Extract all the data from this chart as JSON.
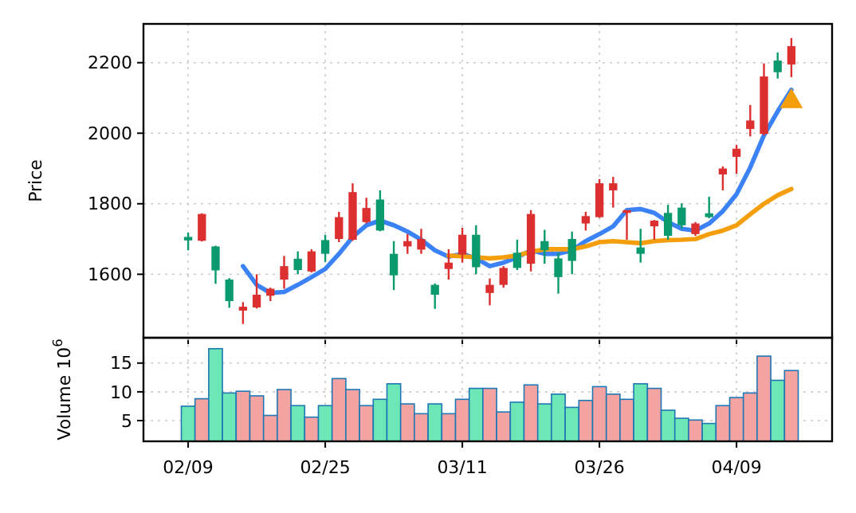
{
  "chart_data": [
    {
      "type": "candlestick",
      "ylabel": "Price",
      "ylim": [
        1420,
        2310
      ],
      "yticks": [
        1600,
        1800,
        2000,
        2200
      ],
      "grid": true,
      "tick_labels": "y",
      "categories": [
        null,
        null,
        null,
        null,
        null,
        null,
        null,
        null,
        null,
        null,
        null,
        null,
        null,
        null,
        null,
        null,
        null,
        null,
        null,
        null,
        null,
        null,
        null,
        null,
        null,
        null,
        null,
        null,
        null,
        null,
        null,
        null,
        null,
        null,
        null,
        null,
        null,
        null,
        null,
        null,
        null,
        null,
        null,
        null,
        null
      ],
      "ohlc": [
        [
          1706,
          1718,
          1668,
          1696
        ],
        [
          1695,
          1773,
          1693,
          1771
        ],
        [
          1679,
          1681,
          1573,
          1611
        ],
        [
          1585,
          1589,
          1505,
          1524
        ],
        [
          1497,
          1521,
          1459,
          1508
        ],
        [
          1506,
          1600,
          1503,
          1542
        ],
        [
          1539,
          1562,
          1524,
          1559
        ],
        [
          1585,
          1652,
          1559,
          1623
        ],
        [
          1644,
          1665,
          1600,
          1612
        ],
        [
          1608,
          1671,
          1605,
          1665
        ],
        [
          1697,
          1712,
          1635,
          1658
        ],
        [
          1700,
          1777,
          1691,
          1762
        ],
        [
          1698,
          1858,
          1695,
          1833
        ],
        [
          1748,
          1817,
          1744,
          1788
        ],
        [
          1812,
          1838,
          1722,
          1724
        ],
        [
          1658,
          1694,
          1555,
          1597
        ],
        [
          1679,
          1714,
          1658,
          1694
        ],
        [
          1670,
          1729,
          1658,
          1700
        ],
        [
          1570,
          1574,
          1502,
          1542
        ],
        [
          1615,
          1671,
          1585,
          1633
        ],
        [
          1656,
          1732,
          1633,
          1712
        ],
        [
          1712,
          1739,
          1600,
          1620
        ],
        [
          1547,
          1588,
          1512,
          1570
        ],
        [
          1570,
          1623,
          1562,
          1618
        ],
        [
          1661,
          1698,
          1612,
          1618
        ],
        [
          1630,
          1782,
          1608,
          1771
        ],
        [
          1694,
          1726,
          1630,
          1668
        ],
        [
          1645,
          1661,
          1545,
          1592
        ],
        [
          1700,
          1721,
          1600,
          1638
        ],
        [
          1744,
          1777,
          1724,
          1765
        ],
        [
          1762,
          1870,
          1760,
          1858
        ],
        [
          1838,
          1876,
          1789,
          1858
        ],
        [
          1774,
          1782,
          1698,
          1782
        ],
        [
          1676,
          1729,
          1633,
          1658
        ],
        [
          1736,
          1754,
          1698,
          1752
        ],
        [
          1774,
          1797,
          1698,
          1709
        ],
        [
          1789,
          1801,
          1729,
          1739
        ],
        [
          1714,
          1748,
          1709,
          1744
        ],
        [
          1773,
          1820,
          1759,
          1762
        ],
        [
          1883,
          1906,
          1838,
          1900
        ],
        [
          1933,
          1967,
          1885,
          1956
        ],
        [
          2012,
          2080,
          1991,
          2036
        ],
        [
          1998,
          2198,
          1994,
          2161
        ],
        [
          2206,
          2229,
          2155,
          2173
        ],
        [
          2195,
          2270,
          2159,
          2247
        ]
      ],
      "colors": [
        "#0b9a6d",
        "#dc2f2f",
        "#0b9a6d",
        "#0b9a6d",
        "#dc2f2f",
        "#dc2f2f",
        "#dc2f2f",
        "#dc2f2f",
        "#0b9a6d",
        "#dc2f2f",
        "#0b9a6d",
        "#dc2f2f",
        "#dc2f2f",
        "#dc2f2f",
        "#0b9a6d",
        "#0b9a6d",
        "#dc2f2f",
        "#dc2f2f",
        "#0b9a6d",
        "#dc2f2f",
        "#dc2f2f",
        "#0b9a6d",
        "#dc2f2f",
        "#dc2f2f",
        "#0b9a6d",
        "#dc2f2f",
        "#0b9a6d",
        "#0b9a6d",
        "#0b9a6d",
        "#dc2f2f",
        "#dc2f2f",
        "#dc2f2f",
        "#dc2f2f",
        "#0b9a6d",
        "#dc2f2f",
        "#0b9a6d",
        "#0b9a6d",
        "#dc2f2f",
        "#0b9a6d",
        "#dc2f2f",
        "#dc2f2f",
        "#dc2f2f",
        "#dc2f2f",
        "#0b9a6d",
        "#dc2f2f"
      ],
      "series": [
        {
          "type": "line",
          "color": "#3b82f6",
          "values": [
            null,
            null,
            null,
            null,
            1623,
            1570,
            1547,
            1550,
            1570,
            1592,
            1615,
            1658,
            1706,
            1739,
            1752,
            1739,
            1721,
            1698,
            1668,
            1650,
            1658,
            1645,
            1623,
            1633,
            1648,
            1668,
            1658,
            1658,
            1668,
            1694,
            1714,
            1736,
            1782,
            1785,
            1774,
            1748,
            1729,
            1724,
            1744,
            1779,
            1827,
            1903,
            1994,
            2062,
            2123
          ]
        },
        {
          "type": "line",
          "color": "#f59e0b",
          "values": [
            null,
            null,
            null,
            null,
            null,
            null,
            null,
            null,
            null,
            null,
            null,
            null,
            null,
            null,
            null,
            null,
            null,
            null,
            null,
            1653,
            1651,
            1648,
            1645,
            1648,
            1653,
            1664,
            1671,
            1671,
            1671,
            1679,
            1691,
            1694,
            1691,
            1688,
            1694,
            1697,
            1698,
            1700,
            1714,
            1724,
            1739,
            1770,
            1800,
            1824,
            1842
          ]
        },
        {
          "type": "scatter",
          "color": "#f59e0b",
          "marker": "triangle",
          "values": [
            null,
            null,
            null,
            null,
            null,
            null,
            null,
            null,
            null,
            null,
            null,
            null,
            null,
            null,
            null,
            null,
            null,
            null,
            null,
            null,
            null,
            null,
            null,
            null,
            null,
            null,
            null,
            null,
            null,
            null,
            null,
            null,
            null,
            null,
            null,
            null,
            null,
            null,
            null,
            null,
            null,
            null,
            null,
            null,
            2090
          ]
        }
      ]
    },
    {
      "type": "bar",
      "ylabel": "Volume  10$^{6}$",
      "ylim": [
        1.4,
        19.4
      ],
      "yticks": [
        5,
        10,
        15
      ],
      "grid": true,
      "categories": [
        "02/09",
        null,
        null,
        null,
        null,
        null,
        null,
        null,
        null,
        null,
        "02/25",
        null,
        null,
        null,
        null,
        null,
        null,
        null,
        null,
        null,
        "03/11",
        null,
        null,
        null,
        null,
        null,
        null,
        null,
        null,
        null,
        "03/26",
        null,
        null,
        null,
        null,
        null,
        null,
        null,
        null,
        null,
        "04/09",
        null,
        null,
        null,
        null
      ],
      "values": [
        7.5,
        8.8,
        17.5,
        9.8,
        10.1,
        9.3,
        5.9,
        10.4,
        7.6,
        5.6,
        7.6,
        12.3,
        10.4,
        7.6,
        8.7,
        11.4,
        7.9,
        6.2,
        7.9,
        6.2,
        8.7,
        10.6,
        10.6,
        6.5,
        8.2,
        11.2,
        7.9,
        9.6,
        7.3,
        8.5,
        10.9,
        9.6,
        8.7,
        11.4,
        10.6,
        6.8,
        5.4,
        5.1,
        4.5,
        7.6,
        9.0,
        9.8,
        16.2,
        12.0,
        13.7
      ],
      "colors": [
        "#6ee7b7",
        "#f4a3a3",
        "#6ee7b7",
        "#6ee7b7",
        "#f4a3a3",
        "#f4a3a3",
        "#f4a3a3",
        "#f4a3a3",
        "#6ee7b7",
        "#f4a3a3",
        "#6ee7b7",
        "#f4a3a3",
        "#f4a3a3",
        "#f4a3a3",
        "#6ee7b7",
        "#6ee7b7",
        "#f4a3a3",
        "#f4a3a3",
        "#6ee7b7",
        "#f4a3a3",
        "#f4a3a3",
        "#6ee7b7",
        "#f4a3a3",
        "#f4a3a3",
        "#6ee7b7",
        "#f4a3a3",
        "#6ee7b7",
        "#6ee7b7",
        "#6ee7b7",
        "#f4a3a3",
        "#f4a3a3",
        "#f4a3a3",
        "#f4a3a3",
        "#6ee7b7",
        "#f4a3a3",
        "#6ee7b7",
        "#6ee7b7",
        "#f4a3a3",
        "#6ee7b7",
        "#f4a3a3",
        "#f4a3a3",
        "#f4a3a3",
        "#f4a3a3",
        "#6ee7b7",
        "#f4a3a3"
      ]
    }
  ]
}
